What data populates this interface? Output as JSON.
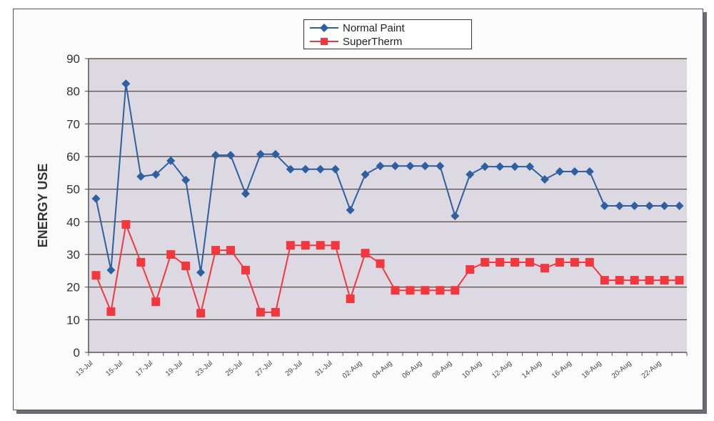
{
  "chart_data": {
    "type": "line",
    "title": "",
    "xlabel": "",
    "ylabel": "ENERGY USE",
    "ylim": [
      0,
      90
    ],
    "yticks": [
      0,
      10,
      20,
      30,
      40,
      50,
      60,
      70,
      80,
      90
    ],
    "grid": true,
    "legend_position": "top-center",
    "x_label_every": 2,
    "x_tick_labels": [
      "13-Jul",
      "15-Jul",
      "17-Jul",
      "19-Jul",
      "23-Jul",
      "25-Jul",
      "27-Jul",
      "29-Jul",
      "31-Jul",
      "02-Aug",
      "04-Aug",
      "06-Aug",
      "08-Aug",
      "10-Aug",
      "12-Aug",
      "14-Aug",
      "16-Aug",
      "18-Aug",
      "20-Aug",
      "22-Aug"
    ],
    "series": [
      {
        "name": "Normal Paint",
        "color": "#2e5f9e",
        "marker": "diamond",
        "values": [
          47.1,
          25.2,
          82.3,
          53.9,
          54.5,
          58.7,
          52.8,
          24.5,
          60.4,
          60.4,
          48.6,
          60.7,
          60.7,
          56.1,
          56.1,
          56.1,
          56.1,
          43.6,
          54.5,
          57.1,
          57.1,
          57.1,
          57.1,
          57.1,
          41.8,
          54.5,
          56.9,
          56.9,
          56.9,
          56.9,
          53.0,
          55.4,
          55.4,
          55.4,
          44.9,
          44.9,
          44.9,
          44.9,
          44.9,
          44.9
        ]
      },
      {
        "name": "SuperTherm",
        "color": "#f2383e",
        "marker": "square",
        "values": [
          23.6,
          12.5,
          39.2,
          27.6,
          15.5,
          30.0,
          26.5,
          12.0,
          31.3,
          31.3,
          25.2,
          12.3,
          12.3,
          32.8,
          32.8,
          32.8,
          32.8,
          16.4,
          30.4,
          27.2,
          19.0,
          19.0,
          19.0,
          19.0,
          19.0,
          25.4,
          27.6,
          27.6,
          27.6,
          27.6,
          25.8,
          27.6,
          27.6,
          27.6,
          22.1,
          22.1,
          22.1,
          22.1,
          22.1,
          22.1
        ]
      }
    ]
  }
}
